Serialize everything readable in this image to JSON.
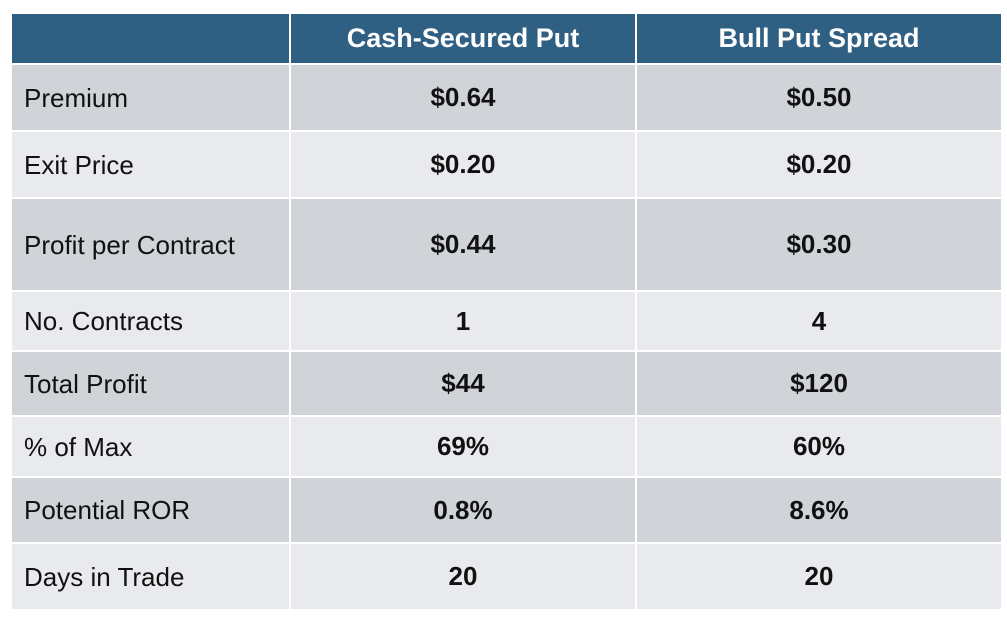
{
  "table": {
    "header": [
      "",
      "Cash-Secured Put",
      "Bull Put Spread"
    ],
    "rows": [
      {
        "label": "Premium",
        "csp": "$0.64",
        "bps": "$0.50"
      },
      {
        "label": "Exit Price",
        "csp": "$0.20",
        "bps": "$0.20"
      },
      {
        "label": "Profit per Contract",
        "csp": "$0.44",
        "bps": "$0.30"
      },
      {
        "label": "No. Contracts",
        "csp": "1",
        "bps": "4"
      },
      {
        "label": "Total Profit",
        "csp": "$44",
        "bps": "$120"
      },
      {
        "label": "% of Max",
        "csp": "69%",
        "bps": "60%"
      },
      {
        "label": "Potential ROR",
        "csp": "0.8%",
        "bps": "8.6%"
      },
      {
        "label": "Days in Trade",
        "csp": "20",
        "bps": "20"
      }
    ]
  },
  "colors": {
    "header_bg": "#2f5f82",
    "header_text": "#ffffff",
    "row_dark": "#d0d3d7",
    "row_light": "#e8eaed"
  }
}
